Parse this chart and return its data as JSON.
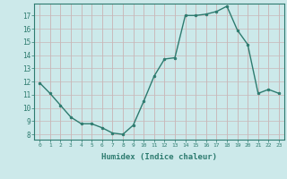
{
  "x": [
    0,
    1,
    2,
    3,
    4,
    5,
    6,
    7,
    8,
    9,
    10,
    11,
    12,
    13,
    14,
    15,
    16,
    17,
    18,
    19,
    20,
    21,
    22,
    23
  ],
  "y": [
    11.9,
    11.1,
    10.2,
    9.3,
    8.8,
    8.8,
    8.5,
    8.1,
    8.0,
    8.7,
    10.5,
    12.4,
    13.7,
    13.8,
    17.0,
    17.0,
    17.1,
    17.3,
    17.7,
    15.9,
    14.8,
    11.1,
    11.4,
    11.1
  ],
  "xlabel": "Humidex (Indice chaleur)",
  "ylim": [
    7.6,
    17.9
  ],
  "xlim": [
    -0.5,
    23.5
  ],
  "yticks": [
    8,
    9,
    10,
    11,
    12,
    13,
    14,
    15,
    16,
    17
  ],
  "xticks": [
    0,
    1,
    2,
    3,
    4,
    5,
    6,
    7,
    8,
    9,
    10,
    11,
    12,
    13,
    14,
    15,
    16,
    17,
    18,
    19,
    20,
    21,
    22,
    23
  ],
  "line_color": "#2d7b6f",
  "marker_color": "#2d7b6f",
  "bg_color": "#cce9ea",
  "grid_color": "#b8b8c8",
  "border_color": "#2d7b6f"
}
